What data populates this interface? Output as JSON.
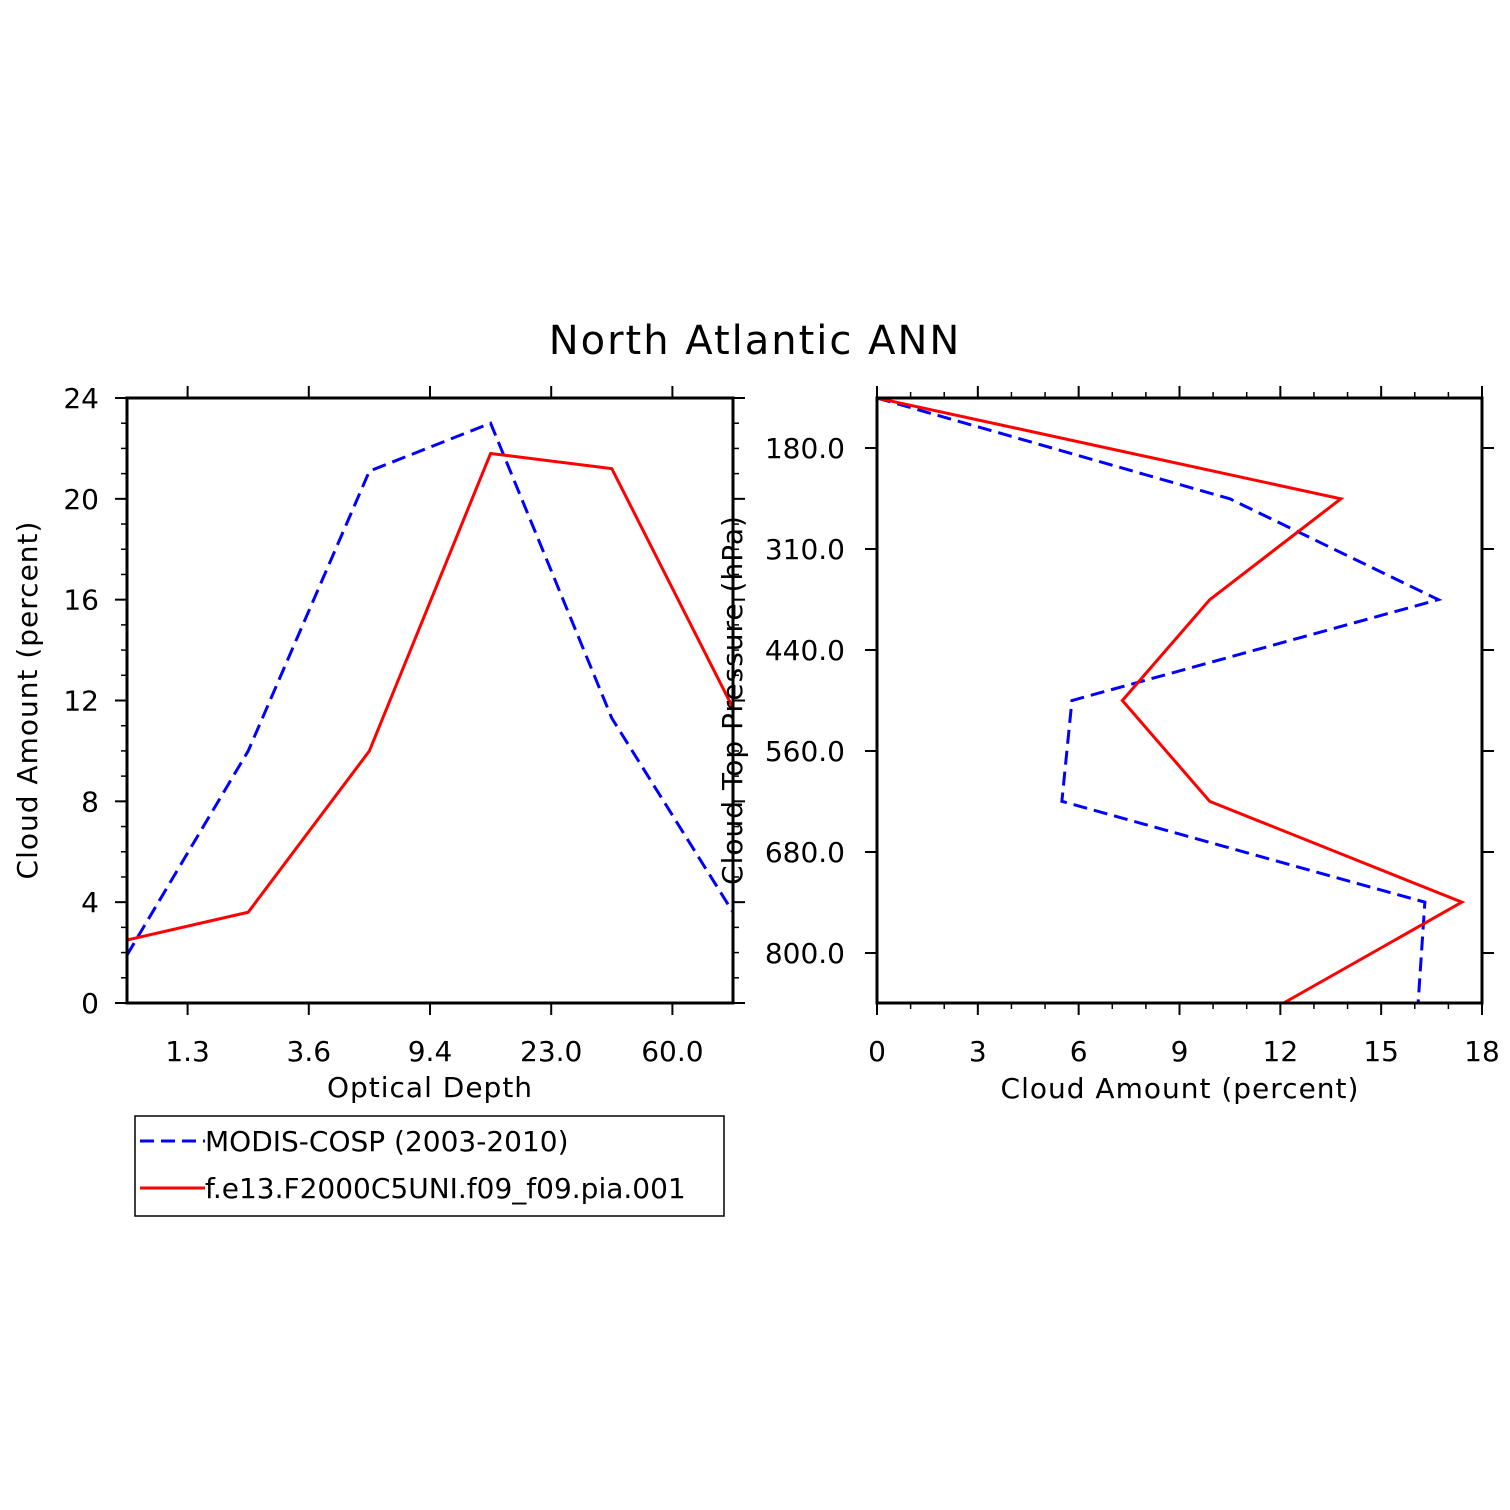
{
  "figure": {
    "title": "North Atlantic ANN"
  },
  "chart_data": [
    {
      "type": "line",
      "xlabel": "Optical Depth",
      "ylabel": "Cloud Amount (percent)",
      "x_tick_labels": [
        "1.3",
        "3.6",
        "9.4",
        "23.0",
        "60.0"
      ],
      "y_ticks": [
        0,
        4,
        8,
        12,
        16,
        20,
        24
      ],
      "ylim": [
        0,
        24
      ],
      "series": [
        {
          "name": "MODIS-COSP (2003-2010)",
          "color": "#0000ff",
          "dash": "dashed",
          "x": [
            "0.3-1.3",
            "1.3-3.6",
            "3.6-9.4",
            "9.4-23.0",
            "23.0-60.0",
            "60.0+"
          ],
          "values": [
            1.9,
            10.0,
            21.1,
            23.0,
            11.3,
            3.6
          ]
        },
        {
          "name": "f.e13.F2000C5UNI.f09_f09.pia.001",
          "color": "#ff0000",
          "dash": "solid",
          "x": [
            "0.3-1.3",
            "1.3-3.6",
            "3.6-9.4",
            "9.4-23.0",
            "23.0-60.0",
            "60.0+"
          ],
          "values": [
            2.5,
            3.6,
            10.0,
            21.8,
            21.2,
            11.7
          ]
        }
      ],
      "grid": false,
      "legend": "bottom-left"
    },
    {
      "type": "line",
      "xlabel": "Cloud Amount (percent)",
      "ylabel": "Cloud Top Pressure (hPa)",
      "x_ticks": [
        0,
        3,
        6,
        9,
        12,
        15,
        18
      ],
      "xlim": [
        0,
        18
      ],
      "y_tick_labels": [
        "180.0",
        "310.0",
        "440.0",
        "560.0",
        "680.0",
        "800.0"
      ],
      "y_inverted": true,
      "series": [
        {
          "name": "MODIS-COSP (2003-2010)",
          "color": "#0000ff",
          "dash": "dashed",
          "y": [
            "50-180",
            "180-310",
            "310-440",
            "440-560",
            "560-680",
            "680-800",
            "800-1000"
          ],
          "values": [
            0.0,
            10.5,
            16.7,
            5.8,
            5.5,
            16.3,
            16.1
          ]
        },
        {
          "name": "f.e13.F2000C5UNI.f09_f09.pia.001",
          "color": "#ff0000",
          "dash": "solid",
          "y": [
            "50-180",
            "180-310",
            "310-440",
            "440-560",
            "560-680",
            "680-800",
            "800-1000"
          ],
          "values": [
            0.0,
            13.8,
            9.9,
            7.3,
            9.9,
            17.4,
            12.1
          ]
        }
      ],
      "grid": false
    }
  ]
}
